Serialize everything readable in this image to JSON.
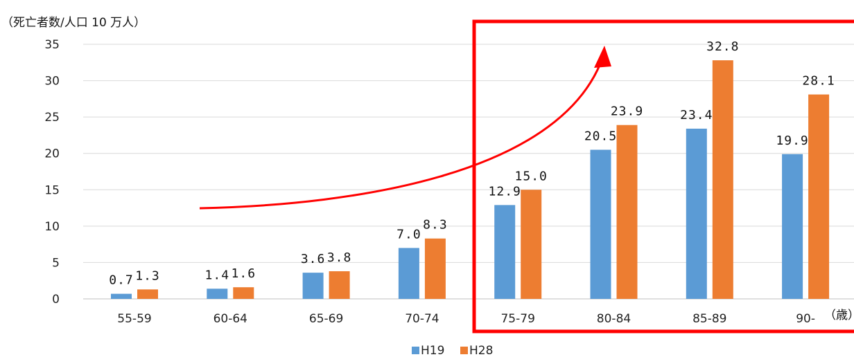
{
  "chart_data": {
    "type": "bar",
    "y_unit_label": "（死亡者数/人口 10 万人）",
    "x_unit_label": "（歳）",
    "categories": [
      "55-59",
      "60-64",
      "65-69",
      "70-74",
      "75-79",
      "80-84",
      "85-89",
      "90-"
    ],
    "series": [
      {
        "name": "H19",
        "color": "#5b9bd5",
        "values": [
          0.7,
          1.4,
          3.6,
          7.0,
          12.9,
          20.5,
          23.4,
          19.9
        ],
        "labels": [
          "0.7",
          "1.4",
          "3.6",
          "7.0",
          "12.9",
          "20.5",
          "23.4",
          "19.9"
        ]
      },
      {
        "name": "H28",
        "color": "#ed7d31",
        "values": [
          1.3,
          1.6,
          3.8,
          8.3,
          15.0,
          23.9,
          32.8,
          28.1
        ],
        "labels": [
          "1.3",
          "1.6",
          "3.8",
          "8.3",
          "15.0",
          "23.9",
          "32.8",
          "28.1"
        ]
      }
    ],
    "ylim": [
      0,
      35
    ],
    "yticks": [
      0,
      5,
      10,
      15,
      20,
      25,
      30,
      35
    ],
    "grid": true,
    "legend_position": "bottom-center",
    "annotations": {
      "highlight_box": {
        "from_category": "75-79",
        "to_category": "90-",
        "color": "#ff0000"
      },
      "trend_arrow": {
        "color": "#ff0000"
      }
    }
  }
}
